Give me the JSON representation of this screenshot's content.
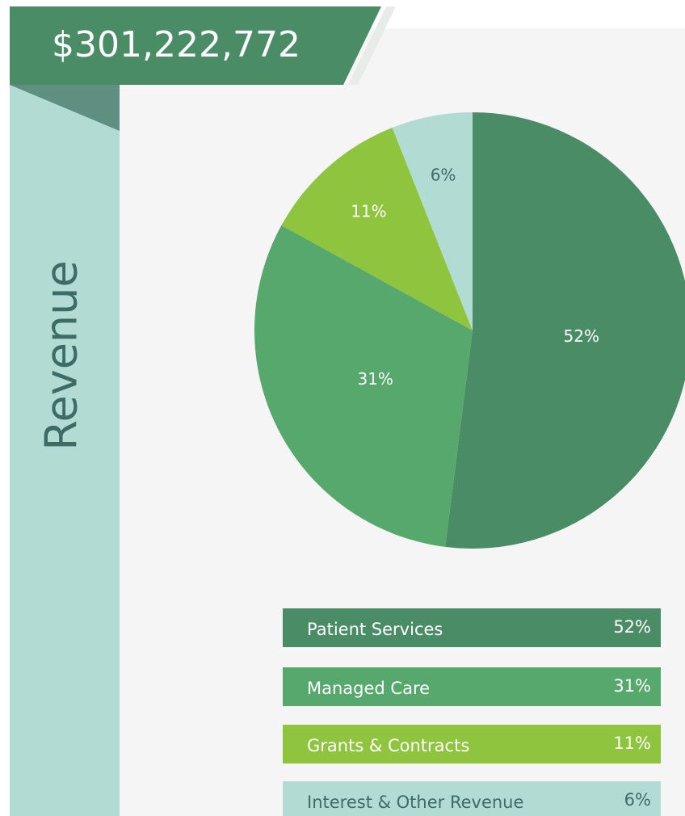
{
  "chart_data": {
    "type": "pie",
    "title": "$301,222,772",
    "side_label": "Revenue",
    "categories": [
      "Patient Services",
      "Managed Care",
      "Grants & Contracts",
      "Interest & Other Revenue"
    ],
    "values": [
      52,
      31,
      11,
      6
    ],
    "value_labels": [
      "52%",
      "31%",
      "11%",
      "6%"
    ],
    "colors": [
      "#4a8c66",
      "#56a86c",
      "#8fc43e",
      "#b2dcd3"
    ]
  }
}
